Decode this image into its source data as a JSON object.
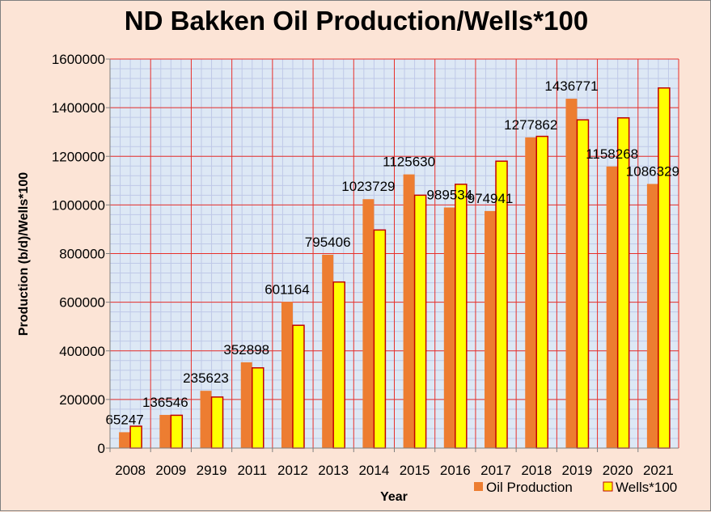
{
  "chart_data": {
    "type": "bar",
    "title": "ND Bakken Oil Production/Wells*100",
    "xlabel": "Year",
    "ylabel": "Production (b/d)/Wells*100",
    "ylim": [
      0,
      1600000
    ],
    "yticks": [
      "0",
      "200000",
      "400000",
      "600000",
      "800000",
      "1000000",
      "1200000",
      "1400000",
      "1600000"
    ],
    "categories": [
      "2008",
      "2009",
      "2919",
      "2011",
      "2012",
      "2013",
      "2014",
      "2015",
      "2016",
      "2017",
      "2018",
      "2019",
      "2020",
      "2021"
    ],
    "grid": true,
    "legend_position": "bottom-right",
    "series": [
      {
        "name": "Oil Production",
        "color": "#ed7d31",
        "values": [
          65247,
          136546,
          235623,
          352898,
          601164,
          795406,
          1023729,
          1125630,
          989534,
          974941,
          1277862,
          1436771,
          1158268,
          1086329
        ],
        "labels": [
          "65247",
          "136546",
          "235623",
          "352898",
          "601164",
          "795406",
          "1023729",
          "1125630",
          "989534",
          "974941",
          "1277862",
          "1436771",
          "1158268",
          "1086329"
        ]
      },
      {
        "name": "Wells*100",
        "color": "#ffff00",
        "values": [
          90000,
          135000,
          210000,
          330000,
          505000,
          683000,
          897000,
          1040000,
          1085000,
          1180000,
          1282000,
          1350000,
          1358000,
          1481000
        ]
      }
    ]
  }
}
